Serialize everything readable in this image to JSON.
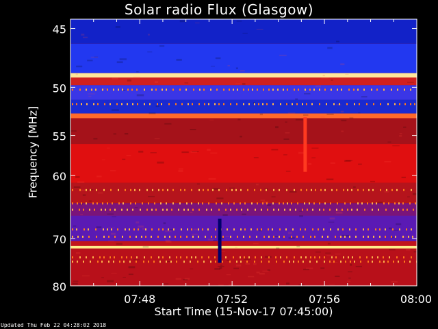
{
  "chart_data": {
    "type": "heatmap",
    "title": "Solar radio Flux (Glasgow)",
    "xlabel": "Start Time (15-Nov-17 07:45:00)",
    "ylabel": "Frequency [MHz]",
    "x_ticks": [
      "07:48",
      "07:52",
      "07:56",
      "08:00"
    ],
    "x_tick_minutes": [
      48,
      52,
      56,
      60
    ],
    "xlim_minutes": [
      45,
      60
    ],
    "y_ticks": [
      45,
      50,
      55,
      60,
      70,
      80
    ],
    "ylim_mhz": [
      44.3,
      80
    ],
    "y_scale": "reciprocal",
    "colormap": [
      "#000000",
      "#0000ff",
      "#ff0000",
      "#ffff99",
      "#ffffff"
    ],
    "frequency_bands": [
      {
        "from": 44.3,
        "to": 46.2,
        "color": "#1222c8"
      },
      {
        "from": 46.2,
        "to": 48.7,
        "color": "#2238f0"
      },
      {
        "from": 48.7,
        "to": 49.1,
        "color": "#ffe79a"
      },
      {
        "from": 49.1,
        "to": 49.8,
        "color": "#d0201f"
      },
      {
        "from": 49.8,
        "to": 51.2,
        "color": "#3a36e6"
      },
      {
        "from": 51.2,
        "to": 52.6,
        "color": "#1a2ad0"
      },
      {
        "from": 52.6,
        "to": 53.1,
        "color": "#ff6a2a"
      },
      {
        "from": 53.1,
        "to": 56.0,
        "color": "#a5121a"
      },
      {
        "from": 56.0,
        "to": 61.0,
        "color": "#e00f10"
      },
      {
        "from": 61.0,
        "to": 64.0,
        "color": "#b5141c"
      },
      {
        "from": 64.0,
        "to": 66.0,
        "color": "#7a147a"
      },
      {
        "from": 66.0,
        "to": 70.5,
        "color": "#5a1ab4"
      },
      {
        "from": 70.5,
        "to": 71.4,
        "color": "#c2141c"
      },
      {
        "from": 71.4,
        "to": 71.9,
        "color": "#ffee8a"
      },
      {
        "from": 71.9,
        "to": 80.0,
        "color": "#b8101a"
      }
    ],
    "noise_lines_mhz": [
      50.2,
      51.6,
      62.0,
      64.0,
      65.0,
      68.3,
      69.6,
      73.6,
      74.5
    ],
    "bursts": [
      {
        "time_min": 51.45,
        "from": 66.5,
        "to": 74.8,
        "color": "#00006a"
      },
      {
        "time_min": 55.15,
        "from": 53.0,
        "to": 59.5,
        "color": "#ff3a20"
      }
    ]
  },
  "footer": {
    "updated": "Updated Thu Feb 22 04:28:02 2018"
  }
}
